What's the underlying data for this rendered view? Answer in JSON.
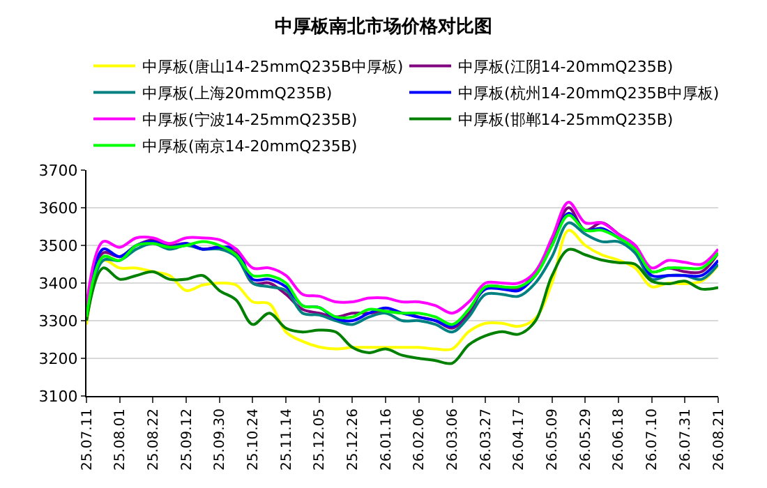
{
  "chart_data": {
    "type": "line",
    "title": "中厚板南北市场价格对比图",
    "categories": [
      "25.07.11",
      null,
      "25.08.01",
      null,
      "25.08.22",
      null,
      "25.09.12",
      null,
      "25.09.30",
      null,
      "25.10.24",
      null,
      "25.11.14",
      null,
      "25.12.05",
      null,
      "25.12.26",
      null,
      "26.01.16",
      null,
      "26.02.06",
      null,
      "26.03.06",
      null,
      "26.03.27",
      null,
      "26.04.17",
      null,
      "26.05.09",
      null,
      "26.05.29",
      null,
      "26.06.18",
      null,
      "26.07.10",
      null,
      "26.07.31",
      null,
      "26.08.21"
    ],
    "series": [
      {
        "name": "中厚板(唐山14-25mmQ235B中厚板)",
        "color": "#ffff00",
        "values": [
          3290,
          3460,
          3440,
          3440,
          3430,
          3420,
          3380,
          3395,
          3400,
          3395,
          3350,
          3345,
          3270,
          3245,
          3230,
          3225,
          3229,
          3229,
          3229,
          3229,
          3229,
          3225,
          3225,
          3271,
          3293,
          3293,
          3285,
          3306,
          3400,
          3540,
          3500,
          3475,
          3461,
          3440,
          3390,
          3400,
          3398,
          3405,
          3447
        ]
      },
      {
        "name": "中厚板(江阴14-20mmQ235B)",
        "color": "#800080",
        "values": [
          3330,
          3480,
          3470,
          3500,
          3515,
          3500,
          3505,
          3490,
          3495,
          3480,
          3400,
          3400,
          3370,
          3330,
          3320,
          3310,
          3320,
          3320,
          3325,
          3320,
          3310,
          3300,
          3280,
          3320,
          3390,
          3390,
          3385,
          3430,
          3510,
          3600,
          3540,
          3560,
          3530,
          3500,
          3430,
          3440,
          3430,
          3430,
          3480
        ]
      },
      {
        "name": "中厚板(上海20mmQ235B)",
        "color": "#008080",
        "values": [
          3300,
          3460,
          3460,
          3490,
          3505,
          3490,
          3500,
          3490,
          3490,
          3470,
          3400,
          3390,
          3380,
          3320,
          3315,
          3300,
          3290,
          3310,
          3320,
          3300,
          3300,
          3290,
          3270,
          3310,
          3370,
          3370,
          3365,
          3400,
          3470,
          3560,
          3530,
          3510,
          3510,
          3480,
          3410,
          3420,
          3420,
          3410,
          3450
        ]
      },
      {
        "name": "中厚板(杭州14-20mmQ235B中厚板)",
        "color": "#0000ff",
        "values": [
          3320,
          3490,
          3470,
          3500,
          3510,
          3495,
          3505,
          3490,
          3495,
          3490,
          3410,
          3410,
          3390,
          3340,
          3335,
          3306,
          3300,
          3320,
          3334,
          3320,
          3309,
          3300,
          3285,
          3330,
          3384,
          3384,
          3380,
          3420,
          3500,
          3585,
          3540,
          3545,
          3520,
          3490,
          3420,
          3420,
          3420,
          3420,
          3460
        ]
      },
      {
        "name": "中厚板(宁波14-25mmQ235B)",
        "color": "#ff00ff",
        "values": [
          3340,
          3510,
          3495,
          3520,
          3520,
          3505,
          3520,
          3520,
          3515,
          3490,
          3440,
          3440,
          3420,
          3370,
          3365,
          3350,
          3350,
          3360,
          3360,
          3350,
          3350,
          3340,
          3320,
          3350,
          3400,
          3400,
          3400,
          3430,
          3520,
          3615,
          3560,
          3560,
          3530,
          3500,
          3440,
          3460,
          3455,
          3450,
          3490
        ]
      },
      {
        "name": "中厚板(邯郸14-25mmQ235B)",
        "color": "#008000",
        "values": [
          3300,
          3440,
          3410,
          3420,
          3430,
          3410,
          3410,
          3420,
          3380,
          3355,
          3290,
          3320,
          3280,
          3270,
          3275,
          3270,
          3229,
          3215,
          3225,
          3208,
          3200,
          3194,
          3187,
          3236,
          3260,
          3271,
          3264,
          3299,
          3419,
          3489,
          3475,
          3461,
          3454,
          3450,
          3405,
          3398,
          3405,
          3384,
          3388
        ]
      },
      {
        "name": "中厚板(南京14-20mmQ235B)",
        "color": "#00ff00",
        "values": [
          3310,
          3470,
          3460,
          3500,
          3505,
          3495,
          3500,
          3510,
          3500,
          3475,
          3420,
          3420,
          3400,
          3340,
          3335,
          3310,
          3310,
          3330,
          3325,
          3320,
          3320,
          3310,
          3290,
          3330,
          3390,
          3390,
          3390,
          3420,
          3500,
          3580,
          3540,
          3540,
          3520,
          3490,
          3430,
          3440,
          3440,
          3440,
          3480
        ]
      }
    ],
    "ylim": [
      3100,
      3700
    ],
    "yticks": [
      3100,
      3200,
      3300,
      3400,
      3500,
      3600,
      3700
    ],
    "grid": "y",
    "legend": "top",
    "marker": "none",
    "line_style": "solid"
  }
}
